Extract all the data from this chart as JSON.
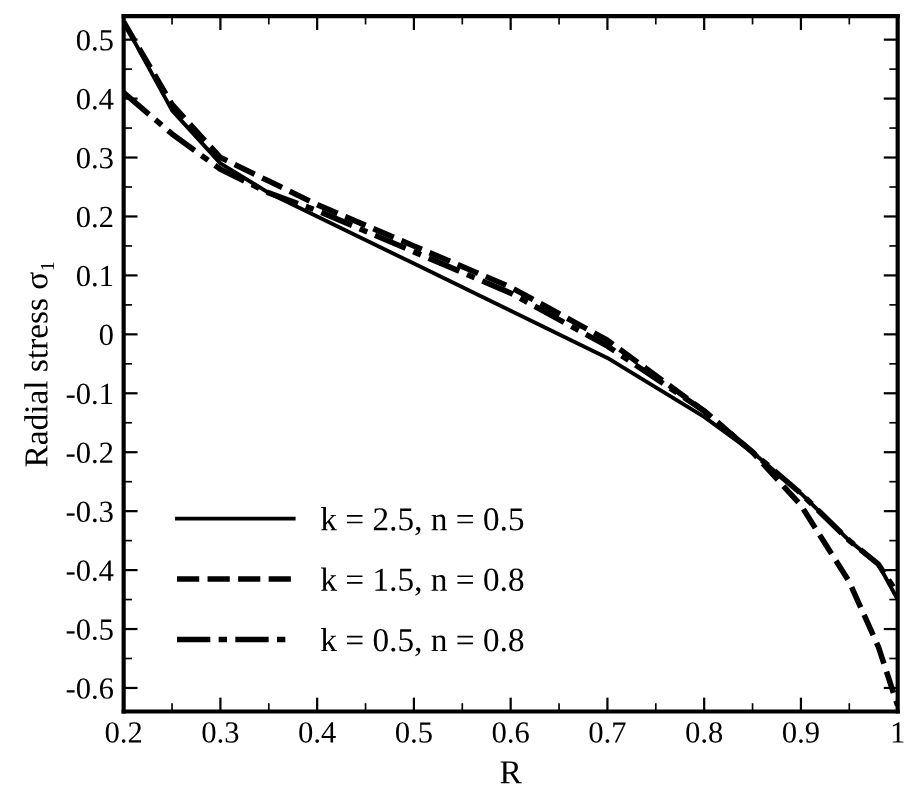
{
  "chart_data": {
    "type": "line",
    "xlabel": "R",
    "ylabel": "Radial stress σ₁",
    "x": [
      0.2,
      0.25,
      0.3,
      0.35,
      0.4,
      0.5,
      0.6,
      0.7,
      0.8,
      0.85,
      0.9,
      0.95,
      0.98,
      1.0
    ],
    "series": [
      {
        "name": "k = 2.5, n = 0.5",
        "color": "#000000",
        "line_style": "solid",
        "values": [
          0.53,
          0.38,
          0.29,
          0.24,
          0.2,
          0.12,
          0.04,
          -0.04,
          -0.14,
          -0.2,
          -0.27,
          -0.35,
          -0.39,
          -0.45
        ]
      },
      {
        "name": "k = 1.5, n = 0.8",
        "color": "#000000",
        "line_style": "dashed",
        "values": [
          0.53,
          0.39,
          0.3,
          0.26,
          0.22,
          0.15,
          0.08,
          -0.01,
          -0.13,
          -0.2,
          -0.29,
          -0.42,
          -0.53,
          -0.63
        ]
      },
      {
        "name": "k = 0.5, n = 0.8",
        "color": "#000000",
        "line_style": "dashdot",
        "values": [
          0.41,
          0.34,
          0.28,
          0.24,
          0.21,
          0.14,
          0.07,
          -0.02,
          -0.13,
          -0.2,
          -0.27,
          -0.35,
          -0.39,
          -0.44
        ]
      }
    ],
    "xlim": [
      0.2,
      1.0
    ],
    "xticks": [
      0.2,
      0.3,
      0.4,
      0.5,
      0.6,
      0.7,
      0.8,
      0.9,
      {
        "value": 1.0,
        "label": "1"
      }
    ],
    "ylim": [
      -0.64,
      0.54
    ],
    "yticks": [
      -0.6,
      -0.5,
      -0.4,
      -0.3,
      -0.2,
      -0.1,
      0,
      0.1,
      0.2,
      0.3,
      0.4,
      0.5
    ],
    "grid": false,
    "legend": "bottom left",
    "marker": "none"
  }
}
